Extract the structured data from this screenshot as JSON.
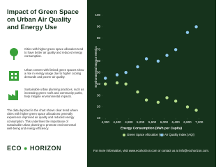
{
  "header": {
    "title": "Impact of Green Space on Urban Air Quality and Energy Use"
  },
  "points": [
    "Cities with higher green space allocation tend to have better air quality and reduced energy consumption.",
    "Urban centers with limited green spaces show a rise in energy usage due to higher cooling demands and poorer air quality.",
    "Sustainable urban planning practices, such as increasing green roofs and community parks, help mitigate environmental impacts."
  ],
  "paragraph": "The data depicted in the chart shows clear trend where cities with higher green space allocations generally experience improved air quality and reduced energy consumption. This underlines the importance of sustainable urban planning to promote environmental well-being and energy efficiency.",
  "logo": {
    "left": "ECO",
    "right": "HORIZON"
  },
  "footer": "For more information, visit www.ecohorizon.com or contact us at info@ecohorizon.com.",
  "chart_data": {
    "type": "scatter",
    "x_label": "Energy Consumption (kWh per Capita)",
    "y_label": "Environmental Impact Metrics",
    "x": [
      4000,
      4400,
      4700,
      5100,
      5400,
      5800,
      6100,
      6400,
      6800,
      7100
    ],
    "series": [
      {
        "name": "Green Space Allocation (%)",
        "color": "#b5dc8c",
        "values": [
          40,
          41,
          40,
          33,
          26,
          24,
          28,
          25,
          20,
          17
        ]
      },
      {
        "name": "Air Quality Index (AQI)",
        "color": "#8ec9ee",
        "values": [
          45,
          48,
          50,
          55,
          62,
          60,
          65,
          70,
          85,
          90
        ]
      }
    ],
    "xlim": [
      3900,
      7300
    ],
    "ylim": [
      10,
      100
    ],
    "xticks": [
      {
        "value": 4000,
        "label": "4,000"
      },
      {
        "value": 4400,
        "label": "4,400"
      },
      {
        "value": 4800,
        "label": "4,800"
      },
      {
        "value": 5200,
        "label": "5,200"
      },
      {
        "value": 5600,
        "label": "5,600"
      },
      {
        "value": 6000,
        "label": "6,000"
      },
      {
        "value": 6400,
        "label": "6,400"
      },
      {
        "value": 6800,
        "label": "6,800"
      },
      {
        "value": 7200,
        "label": "7,200"
      }
    ],
    "yticks": [
      10,
      20,
      30,
      40,
      50,
      60,
      70,
      80,
      90,
      100
    ],
    "grid": false
  }
}
